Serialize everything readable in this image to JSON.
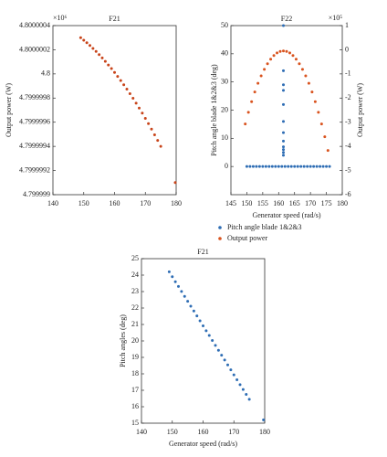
{
  "chart_data": [
    {
      "type": "scatter",
      "title": "F21",
      "annotation": "×10⁶",
      "y_label": "Output power (W)",
      "xlim": [
        140,
        180
      ],
      "xticks": [
        140,
        150,
        160,
        170,
        180
      ],
      "ylim": [
        4.799999,
        4.8000004
      ],
      "yticks": [
        4.799999,
        4.7999992,
        4.7999994,
        4.7999996,
        4.7999998,
        4.8,
        4.8000002,
        4.8000004
      ],
      "series": [
        {
          "color": "#c8441a",
          "x": [
            149,
            150,
            151,
            152,
            153,
            154,
            155,
            156,
            157,
            158,
            159,
            160,
            161,
            162,
            163,
            164,
            165,
            166,
            167,
            168,
            169,
            170,
            171,
            172,
            173,
            174,
            175,
            179.7
          ],
          "values": [
            4.8000003,
            4.800000279,
            4.800000258,
            4.800000235,
            4.800000211,
            4.800000186,
            4.80000016,
            4.800000132,
            4.800000104,
            4.800000074,
            4.800000044,
            4.800000012,
            4.799999979,
            4.799999945,
            4.79999991,
            4.799999874,
            4.799999836,
            4.799999798,
            4.799999758,
            4.799999717,
            4.799999675,
            4.799999632,
            4.799999588,
            4.799999543,
            4.799999496,
            4.799999449,
            4.7999994,
            4.7999991
          ]
        }
      ]
    },
    {
      "type": "scatter",
      "title": "F22",
      "annotation": "×10⁵",
      "x_label": "Generator speed (rad/s)",
      "y_label": "Pitch angle blade 1&2&3 (deg)",
      "y2_label": "Output power (W)",
      "xlim": [
        145,
        180
      ],
      "xticks": [
        145,
        150,
        155,
        160,
        165,
        170,
        175,
        180
      ],
      "ylim": [
        -10,
        50
      ],
      "yticks": [
        0,
        10,
        20,
        30,
        40,
        50
      ],
      "y2lim": [
        -6,
        1
      ],
      "y2ticks": [
        -6,
        -5,
        -4,
        -3,
        -2,
        -1,
        0,
        1
      ],
      "series": [
        {
          "name": "Pitch angle blade 1&2&3",
          "color": "#2e6db4",
          "x": [
            150,
            151,
            152,
            153,
            154,
            155,
            156,
            157,
            158,
            159,
            160,
            161,
            162,
            163,
            164,
            165,
            166,
            167,
            168,
            169,
            170,
            171,
            172,
            173,
            174,
            175,
            176,
            161.5,
            161.5,
            161.5,
            161.5,
            161.5,
            161.5,
            161.5,
            161.5,
            161.5,
            161.5,
            161.5,
            161.5
          ],
          "values": [
            0,
            0,
            0,
            0,
            0,
            0,
            0,
            0,
            0,
            0,
            0,
            0,
            0,
            0,
            0,
            0,
            0,
            0,
            0,
            0,
            0,
            0,
            0,
            0,
            0,
            0,
            0,
            4,
            5,
            6,
            7,
            9,
            12,
            16,
            22,
            27,
            29,
            34,
            50
          ]
        },
        {
          "name": "Output power",
          "color": "#d9531e",
          "axis": "y2",
          "x": [
            149.5,
            150.5,
            151.5,
            152.5,
            153.5,
            154.5,
            155.5,
            156.5,
            157.5,
            158.5,
            159.5,
            160.5,
            161.5,
            162.5,
            163.5,
            164.5,
            165.5,
            166.5,
            167.5,
            168.5,
            169.5,
            170.5,
            171.5,
            172.5,
            173.5,
            174.5,
            175.5
          ],
          "values": [
            -3.07,
            -2.59,
            -2.15,
            -1.75,
            -1.39,
            -1.08,
            -0.81,
            -0.58,
            -0.39,
            -0.24,
            -0.13,
            -0.07,
            -0.05,
            -0.07,
            -0.13,
            -0.24,
            -0.39,
            -0.58,
            -0.81,
            -1.08,
            -1.39,
            -1.75,
            -2.15,
            -2.59,
            -3.07,
            -3.6,
            -4.17
          ]
        }
      ]
    },
    {
      "type": "scatter",
      "title": "F21",
      "x_label": "Generator speed (rad/s)",
      "y_label": "Pitch angles (deg)",
      "xlim": [
        140,
        180
      ],
      "xticks": [
        140,
        150,
        160,
        170,
        180
      ],
      "ylim": [
        15,
        25
      ],
      "yticks": [
        15,
        16,
        17,
        18,
        19,
        20,
        21,
        22,
        23,
        24,
        25
      ],
      "series": [
        {
          "color": "#2e6db4",
          "x": [
            149,
            150,
            151,
            152,
            153,
            154,
            155,
            156,
            157,
            158,
            159,
            160,
            161,
            162,
            163,
            164,
            165,
            166,
            167,
            168,
            169,
            170,
            171,
            172,
            173,
            174,
            175,
            179.6
          ],
          "values": [
            24.2,
            23.9,
            23.6,
            23.31,
            23.01,
            22.71,
            22.41,
            22.11,
            21.82,
            21.52,
            21.22,
            20.92,
            20.62,
            20.33,
            20.03,
            19.73,
            19.43,
            19.13,
            18.84,
            18.54,
            18.24,
            17.94,
            17.64,
            17.34,
            17.05,
            16.75,
            16.45,
            15.2
          ]
        }
      ]
    }
  ]
}
